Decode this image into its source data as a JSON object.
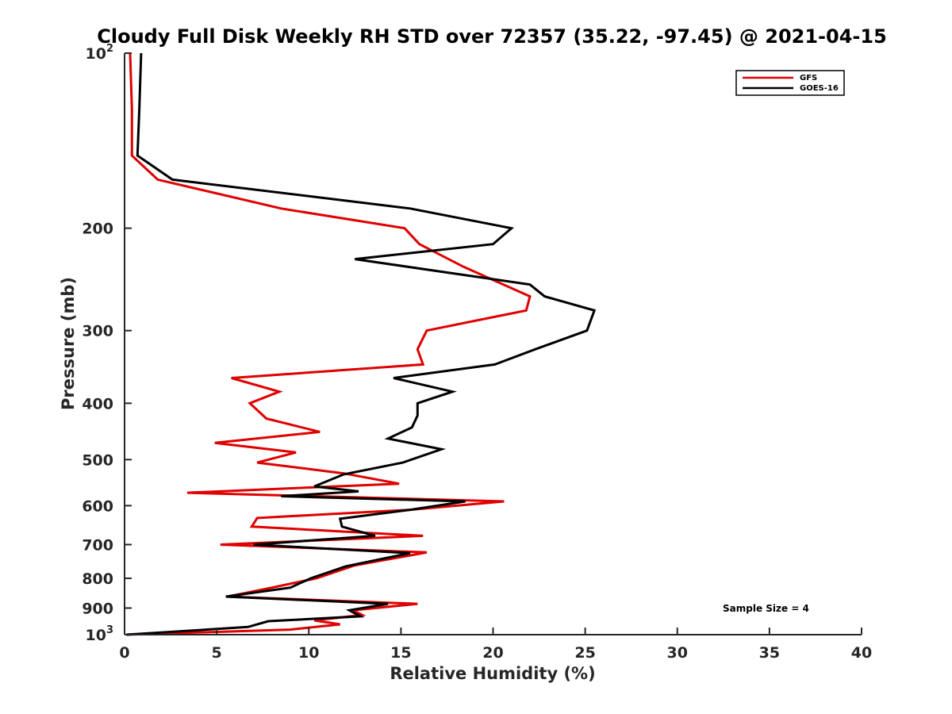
{
  "chart_data": {
    "type": "line",
    "title": "Cloudy Full Disk Weekly RH STD over 72357 (35.22, -97.45) @ 2021-04-15",
    "xlabel": "Relative Humidity (%)",
    "ylabel": "Pressure (mb)",
    "xlim": [
      0,
      40
    ],
    "ylim": [
      100,
      1000
    ],
    "y_scale": "log",
    "y_reversed": true,
    "grid": false,
    "legend_position": "top-right",
    "x_ticks": [
      0,
      5,
      10,
      15,
      20,
      25,
      30,
      35,
      40
    ],
    "x_tick_labels": [
      "0",
      "5",
      "10",
      "15",
      "20",
      "25",
      "30",
      "35",
      "40"
    ],
    "y_ticks": [
      100,
      200,
      300,
      400,
      500,
      600,
      700,
      800,
      900,
      1000
    ],
    "y_tick_labels": [
      {
        "base": "10",
        "exp": "2"
      },
      {
        "base": "200",
        "exp": ""
      },
      {
        "base": "300",
        "exp": ""
      },
      {
        "base": "400",
        "exp": ""
      },
      {
        "base": "500",
        "exp": ""
      },
      {
        "base": "600",
        "exp": ""
      },
      {
        "base": "700",
        "exp": ""
      },
      {
        "base": "800",
        "exp": ""
      },
      {
        "base": "900",
        "exp": ""
      },
      {
        "base": "10",
        "exp": "3"
      }
    ],
    "series": [
      {
        "name": "GFS",
        "color": "#e00000",
        "points": [
          [
            0.3,
            100
          ],
          [
            0.4,
            125
          ],
          [
            0.4,
            150
          ],
          [
            1.8,
            165
          ],
          [
            8.5,
            185
          ],
          [
            15.2,
            200
          ],
          [
            16.0,
            213
          ],
          [
            18.4,
            233
          ],
          [
            22.0,
            262
          ],
          [
            21.8,
            277
          ],
          [
            16.4,
            300
          ],
          [
            15.9,
            323
          ],
          [
            16.2,
            343
          ],
          [
            5.8,
            362
          ],
          [
            8.4,
            382
          ],
          [
            6.8,
            400
          ],
          [
            7.7,
            425
          ],
          [
            10.6,
            448
          ],
          [
            4.9,
            468
          ],
          [
            9.3,
            486
          ],
          [
            7.2,
            506
          ],
          [
            11.9,
            528
          ],
          [
            14.9,
            550
          ],
          [
            3.4,
            570
          ],
          [
            20.6,
            590
          ],
          [
            15.5,
            610
          ],
          [
            7.2,
            630
          ],
          [
            6.9,
            652
          ],
          [
            16.2,
            676
          ],
          [
            5.2,
            700
          ],
          [
            16.4,
            722
          ],
          [
            12.5,
            760
          ],
          [
            10.4,
            800
          ],
          [
            8.0,
            830
          ],
          [
            5.6,
            860
          ],
          [
            15.9,
            885
          ],
          [
            12.4,
            908
          ],
          [
            12.9,
            925
          ],
          [
            10.3,
            945
          ],
          [
            11.7,
            960
          ],
          [
            9.0,
            980
          ],
          [
            0.1,
            1000
          ]
        ]
      },
      {
        "name": "GOES-16",
        "color": "#000000",
        "points": [
          [
            0.9,
            100
          ],
          [
            0.8,
            125
          ],
          [
            0.7,
            150
          ],
          [
            2.6,
            165
          ],
          [
            15.5,
            185
          ],
          [
            21.0,
            200
          ],
          [
            20.0,
            213
          ],
          [
            12.5,
            226
          ],
          [
            22.0,
            250
          ],
          [
            22.8,
            262
          ],
          [
            25.5,
            277
          ],
          [
            25.1,
            300
          ],
          [
            22.3,
            323
          ],
          [
            20.1,
            343
          ],
          [
            14.6,
            362
          ],
          [
            17.8,
            382
          ],
          [
            15.9,
            400
          ],
          [
            15.9,
            420
          ],
          [
            15.6,
            440
          ],
          [
            14.3,
            460
          ],
          [
            17.2,
            480
          ],
          [
            15.1,
            506
          ],
          [
            11.9,
            530
          ],
          [
            10.3,
            556
          ],
          [
            12.7,
            567
          ],
          [
            8.5,
            578
          ],
          [
            18.5,
            590
          ],
          [
            15.5,
            610
          ],
          [
            11.7,
            632
          ],
          [
            11.8,
            652
          ],
          [
            13.6,
            676
          ],
          [
            7.0,
            700
          ],
          [
            15.5,
            724
          ],
          [
            12.0,
            763
          ],
          [
            10.1,
            800
          ],
          [
            9.0,
            830
          ],
          [
            5.5,
            860
          ],
          [
            14.3,
            885
          ],
          [
            12.2,
            908
          ],
          [
            12.8,
            930
          ],
          [
            7.8,
            948
          ],
          [
            6.7,
            970
          ],
          [
            0.1,
            1000
          ]
        ]
      }
    ],
    "annotations": [
      {
        "text": "Sample Size = 4"
      }
    ]
  }
}
